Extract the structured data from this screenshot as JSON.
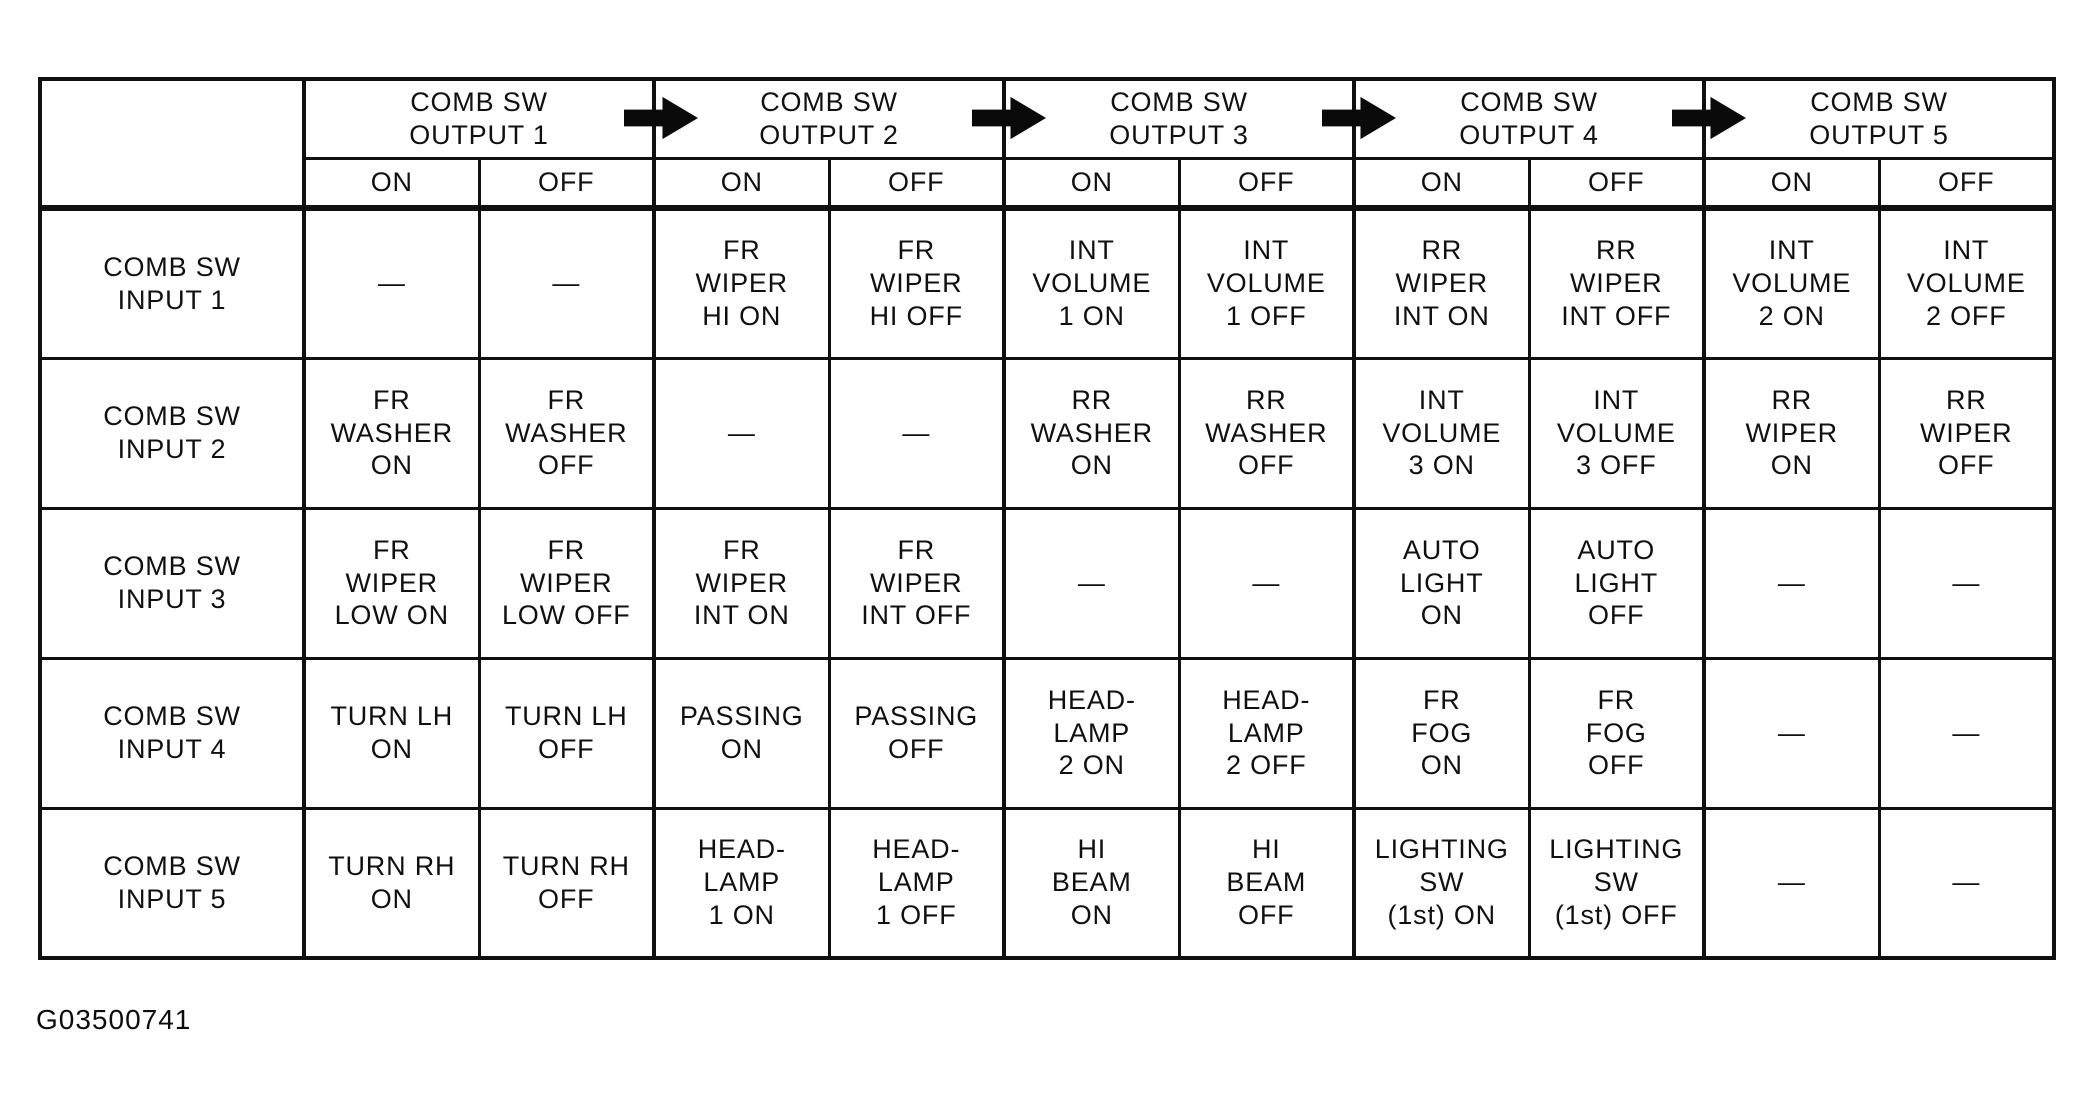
{
  "figure_code": "G03500741",
  "icons": {
    "arrow": "right-arrow-solid-black"
  },
  "table": {
    "col_groups": [
      {
        "label": "COMB SW\nOUTPUT 1"
      },
      {
        "label": "COMB SW\nOUTPUT 2"
      },
      {
        "label": "COMB SW\nOUTPUT 3"
      },
      {
        "label": "COMB SW\nOUTPUT 4"
      },
      {
        "label": "COMB SW\nOUTPUT 5"
      }
    ],
    "sub_headers": [
      "ON",
      "OFF"
    ],
    "rows": [
      {
        "label": "COMB SW\nINPUT 1",
        "cells": [
          "—",
          "—",
          "FR\nWIPER\nHI ON",
          "FR\nWIPER\nHI OFF",
          "INT\nVOLUME\n1 ON",
          "INT\nVOLUME\n1 OFF",
          "RR\nWIPER\nINT ON",
          "RR\nWIPER\nINT OFF",
          "INT\nVOLUME\n2 ON",
          "INT\nVOLUME\n2 OFF"
        ]
      },
      {
        "label": "COMB SW\nINPUT 2",
        "cells": [
          "FR\nWASHER\nON",
          "FR\nWASHER\nOFF",
          "—",
          "—",
          "RR\nWASHER\nON",
          "RR\nWASHER\nOFF",
          "INT\nVOLUME\n3 ON",
          "INT\nVOLUME\n3 OFF",
          "RR\nWIPER\nON",
          "RR\nWIPER\nOFF"
        ]
      },
      {
        "label": "COMB SW\nINPUT 3",
        "cells": [
          "FR\nWIPER\nLOW ON",
          "FR\nWIPER\nLOW OFF",
          "FR\nWIPER\nINT ON",
          "FR\nWIPER\nINT OFF",
          "—",
          "—",
          "AUTO\nLIGHT\nON",
          "AUTO\nLIGHT\nOFF",
          "—",
          "—"
        ]
      },
      {
        "label": "COMB SW\nINPUT 4",
        "cells": [
          "TURN LH\nON",
          "TURN LH\nOFF",
          "PASSING\nON",
          "PASSING\nOFF",
          "HEAD-\nLAMP\n2 ON",
          "HEAD-\nLAMP\n2 OFF",
          "FR\nFOG\nON",
          "FR\nFOG\nOFF",
          "—",
          "—"
        ]
      },
      {
        "label": "COMB SW\nINPUT 5",
        "cells": [
          "TURN RH\nON",
          "TURN RH\nOFF",
          "HEAD-\nLAMP\n1 ON",
          "HEAD-\nLAMP\n1 OFF",
          "HI\nBEAM\nON",
          "HI\nBEAM\nOFF",
          "LIGHTING\nSW\n(1st) ON",
          "LIGHTING\nSW\n(1st) OFF",
          "—",
          "—"
        ]
      }
    ]
  }
}
